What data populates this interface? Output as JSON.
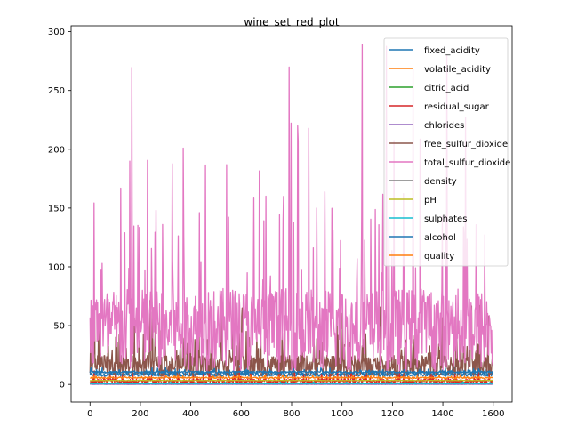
{
  "chart_data": {
    "type": "line",
    "title": "wine_set_red_plot",
    "xlabel": "",
    "ylabel": "",
    "xlim": [
      -75,
      1675
    ],
    "ylim": [
      -15,
      305
    ],
    "x_ticks": [
      0,
      200,
      400,
      600,
      800,
      1000,
      1200,
      1400,
      1600
    ],
    "y_ticks": [
      0,
      50,
      100,
      150,
      200,
      250,
      300
    ],
    "grid": false,
    "legend_position": "upper-right",
    "n_points": 1599,
    "series": [
      {
        "name": "fixed_acidity",
        "color": "#1f77b4",
        "min": 4.6,
        "max": 15.9,
        "mean": 8.3
      },
      {
        "name": "volatile_acidity",
        "color": "#ff7f0e",
        "min": 0.12,
        "max": 1.58,
        "mean": 0.53
      },
      {
        "name": "citric_acid",
        "color": "#2ca02c",
        "min": 0,
        "max": 1,
        "mean": 0.27
      },
      {
        "name": "residual_sugar",
        "color": "#d62728",
        "min": 0.9,
        "max": 15.5,
        "mean": 2.5
      },
      {
        "name": "chlorides",
        "color": "#9467bd",
        "min": 0.012,
        "max": 0.611,
        "mean": 0.087
      },
      {
        "name": "free_sulfur_dioxide",
        "color": "#8c564b",
        "min": 1,
        "max": 72,
        "mean": 15.9
      },
      {
        "name": "total_sulfur_dioxide",
        "color": "#e377c2",
        "min": 6,
        "max": 289,
        "mean": 46.5
      },
      {
        "name": "density",
        "color": "#7f7f7f",
        "min": 0.99,
        "max": 1.0037,
        "mean": 0.9967
      },
      {
        "name": "pH",
        "color": "#bcbd22",
        "min": 2.74,
        "max": 4.01,
        "mean": 3.31
      },
      {
        "name": "sulphates",
        "color": "#17becf",
        "min": 0.33,
        "max": 2,
        "mean": 0.66
      },
      {
        "name": "alcohol",
        "color": "#1f77b4",
        "min": 8.4,
        "max": 14.9,
        "mean": 10.4
      },
      {
        "name": "quality",
        "color": "#ff7f0e",
        "min": 3,
        "max": 8,
        "mean": 5.6
      }
    ]
  }
}
